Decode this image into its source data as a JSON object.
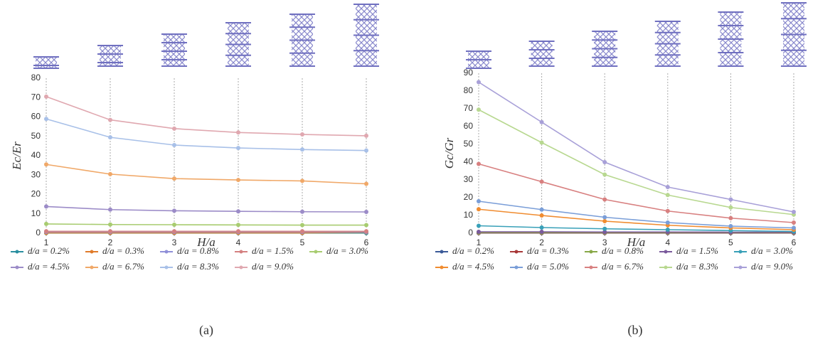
{
  "chart_data": [
    {
      "type": "line",
      "caption": "(a)",
      "xlabel": "H/a",
      "ylabel": "Ec/Er",
      "x": [
        1,
        2,
        3,
        4,
        5,
        6
      ],
      "xlim": [
        1,
        6
      ],
      "xticks": [
        1,
        2,
        3,
        4,
        5,
        6
      ],
      "ylim": [
        0,
        80
      ],
      "yticks": [
        0,
        10,
        20,
        30,
        40,
        50,
        60,
        70,
        80
      ],
      "grid": "x",
      "series": [
        {
          "name": "d/a = 0.2%",
          "color": "#2a8fa0",
          "values": [
            0.1,
            0.1,
            0.1,
            0.1,
            0.1,
            0.1
          ]
        },
        {
          "name": "d/a = 0.3%",
          "color": "#e07b2a",
          "values": [
            0.2,
            0.2,
            0.2,
            0.2,
            0.2,
            0.5
          ]
        },
        {
          "name": "d/a = 0.8%",
          "color": "#8f8fd8",
          "values": [
            0.7,
            0.7,
            0.7,
            0.7,
            0.7,
            0.7
          ]
        },
        {
          "name": "d/a = 1.5%",
          "color": "#d48080",
          "values": [
            1,
            1,
            1,
            1,
            1,
            1
          ]
        },
        {
          "name": "d/a = 3.0%",
          "color": "#a8cc70",
          "values": [
            4.8,
            4.5,
            4.4,
            4.3,
            4.2,
            4.2
          ]
        },
        {
          "name": "d/a = 4.5%",
          "color": "#9c8cc8",
          "values": [
            13.8,
            12.2,
            11.6,
            11.3,
            11.1,
            11
          ]
        },
        {
          "name": "d/a = 6.7%",
          "color": "#f0a868",
          "values": [
            35.5,
            30.5,
            28.2,
            27.5,
            27,
            25.5
          ]
        },
        {
          "name": "d/a = 8.3%",
          "color": "#a8c0e8",
          "values": [
            59,
            49.5,
            45.5,
            44,
            43.2,
            42.7
          ]
        },
        {
          "name": "d/a = 9.0%",
          "color": "#e0a8b0",
          "values": [
            70.5,
            58.5,
            54,
            52,
            51,
            50.3
          ]
        }
      ]
    },
    {
      "type": "line",
      "caption": "(b)",
      "xlabel": "H/a",
      "ylabel": "Gc/Gr",
      "x": [
        1,
        2,
        3,
        4,
        5,
        6
      ],
      "xlim": [
        1,
        6
      ],
      "xticks": [
        1,
        2,
        3,
        4,
        5,
        6
      ],
      "ylim": [
        0,
        90
      ],
      "yticks": [
        0,
        10,
        20,
        30,
        40,
        50,
        60,
        70,
        80,
        90
      ],
      "grid": "x",
      "series": [
        {
          "name": "d/a = 0.2%",
          "color": "#3a5a98",
          "values": [
            0.1,
            0.1,
            0.1,
            0.1,
            0.1,
            0.1
          ]
        },
        {
          "name": "d/a = 0.3%",
          "color": "#a83838",
          "values": [
            0.2,
            0.2,
            0.2,
            0.2,
            0.2,
            0.2
          ]
        },
        {
          "name": "d/a = 0.8%",
          "color": "#88a848",
          "values": [
            0.4,
            0.4,
            0.4,
            0.4,
            0.4,
            0.4
          ]
        },
        {
          "name": "d/a = 1.5%",
          "color": "#7a5a9c",
          "values": [
            0.8,
            0.8,
            0.7,
            0.7,
            0.6,
            0.6
          ]
        },
        {
          "name": "d/a = 3.0%",
          "color": "#38a0b8",
          "values": [
            4.2,
            3.2,
            2.5,
            2,
            1.5,
            1
          ]
        },
        {
          "name": "d/a = 4.5%",
          "color": "#f08c30",
          "values": [
            13.5,
            10,
            6.8,
            4.5,
            3,
            2
          ]
        },
        {
          "name": "d/a = 5.0%",
          "color": "#7a9ed8",
          "values": [
            18,
            13.3,
            9,
            6,
            4,
            3
          ]
        },
        {
          "name": "d/a = 6.7%",
          "color": "#d88080",
          "values": [
            39,
            29,
            19,
            12.5,
            8.5,
            6
          ]
        },
        {
          "name": "d/a = 8.3%",
          "color": "#b8d890",
          "values": [
            69.5,
            51,
            33,
            21.5,
            14.5,
            10.5
          ]
        },
        {
          "name": "d/a = 9.0%",
          "color": "#a8a0d8",
          "values": [
            85,
            62.5,
            40,
            26,
            19,
            12
          ]
        }
      ]
    }
  ]
}
